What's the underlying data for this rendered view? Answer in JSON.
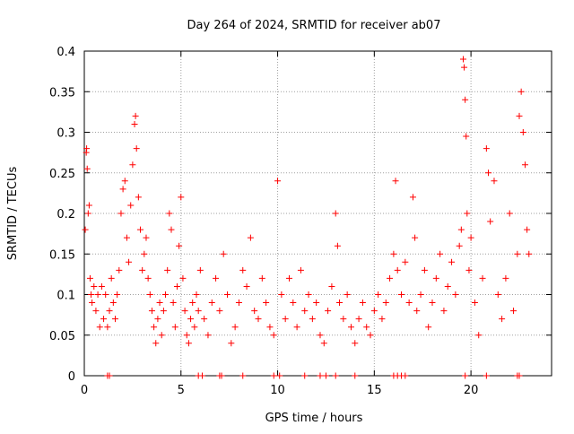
{
  "chart_data": {
    "type": "scatter",
    "title": "Day 264 of 2024, SRMTID for receiver ab07",
    "xlabel": "GPS time / hours",
    "ylabel": "SRMTID / TECUs",
    "xlim": [
      0,
      24.17
    ],
    "ylim": [
      0,
      0.4
    ],
    "grid": true,
    "legend": "none",
    "marker": "+",
    "color": "#ff0000",
    "x_ticks": [
      0,
      5,
      10,
      15,
      20
    ],
    "x_tick_labels": [
      "0",
      "5",
      "10",
      "15",
      "20"
    ],
    "y_ticks": [
      0,
      0.05,
      0.1,
      0.15,
      0.2,
      0.25,
      0.3,
      0.35,
      0.4
    ],
    "y_tick_labels": [
      "0",
      "0.05",
      "0.1",
      "0.15",
      "0.2",
      "0.25",
      "0.3",
      "0.35",
      "0.4"
    ],
    "series": [
      {
        "name": "SRMTID",
        "points": [
          [
            0.05,
            0.18
          ],
          [
            0.1,
            0.275
          ],
          [
            0.12,
            0.28
          ],
          [
            0.15,
            0.255
          ],
          [
            0.2,
            0.2
          ],
          [
            0.25,
            0.21
          ],
          [
            0.3,
            0.12
          ],
          [
            0.35,
            0.1
          ],
          [
            0.4,
            0.09
          ],
          [
            0.5,
            0.11
          ],
          [
            0.6,
            0.08
          ],
          [
            0.7,
            0.1
          ],
          [
            0.8,
            0.06
          ],
          [
            0.9,
            0.11
          ],
          [
            1.0,
            0.07
          ],
          [
            1.1,
            0.1
          ],
          [
            1.2,
            0.06
          ],
          [
            1.3,
            0.08
          ],
          [
            1.4,
            0.12
          ],
          [
            1.5,
            0.09
          ],
          [
            1.6,
            0.07
          ],
          [
            1.7,
            0.1
          ],
          [
            1.8,
            0.13
          ],
          [
            1.9,
            0.2
          ],
          [
            2.0,
            0.23
          ],
          [
            2.1,
            0.24
          ],
          [
            2.2,
            0.17
          ],
          [
            2.3,
            0.14
          ],
          [
            2.4,
            0.21
          ],
          [
            2.5,
            0.26
          ],
          [
            2.6,
            0.31
          ],
          [
            2.65,
            0.32
          ],
          [
            2.7,
            0.28
          ],
          [
            2.8,
            0.22
          ],
          [
            2.9,
            0.18
          ],
          [
            3.0,
            0.13
          ],
          [
            3.1,
            0.15
          ],
          [
            3.2,
            0.17
          ],
          [
            3.3,
            0.12
          ],
          [
            3.4,
            0.1
          ],
          [
            3.5,
            0.08
          ],
          [
            3.6,
            0.06
          ],
          [
            3.7,
            0.04
          ],
          [
            3.8,
            0.07
          ],
          [
            3.9,
            0.09
          ],
          [
            4.0,
            0.05
          ],
          [
            4.1,
            0.08
          ],
          [
            4.2,
            0.1
          ],
          [
            4.3,
            0.13
          ],
          [
            4.4,
            0.2
          ],
          [
            4.5,
            0.18
          ],
          [
            4.6,
            0.09
          ],
          [
            4.7,
            0.06
          ],
          [
            4.8,
            0.11
          ],
          [
            4.9,
            0.16
          ],
          [
            5.0,
            0.22
          ],
          [
            5.1,
            0.12
          ],
          [
            5.2,
            0.08
          ],
          [
            5.3,
            0.05
          ],
          [
            5.4,
            0.04
          ],
          [
            5.5,
            0.07
          ],
          [
            5.6,
            0.09
          ],
          [
            5.7,
            0.06
          ],
          [
            5.8,
            0.1
          ],
          [
            5.9,
            0.08
          ],
          [
            6.0,
            0.13
          ],
          [
            6.2,
            0.07
          ],
          [
            6.4,
            0.05
          ],
          [
            6.6,
            0.09
          ],
          [
            6.8,
            0.12
          ],
          [
            7.0,
            0.08
          ],
          [
            7.2,
            0.15
          ],
          [
            7.4,
            0.1
          ],
          [
            7.6,
            0.04
          ],
          [
            7.8,
            0.06
          ],
          [
            8.0,
            0.09
          ],
          [
            8.2,
            0.13
          ],
          [
            8.4,
            0.11
          ],
          [
            8.6,
            0.17
          ],
          [
            8.8,
            0.08
          ],
          [
            9.0,
            0.07
          ],
          [
            9.2,
            0.12
          ],
          [
            9.4,
            0.09
          ],
          [
            9.6,
            0.06
          ],
          [
            9.8,
            0.05
          ],
          [
            10.0,
            0.24
          ],
          [
            10.2,
            0.1
          ],
          [
            10.4,
            0.07
          ],
          [
            10.6,
            0.12
          ],
          [
            10.8,
            0.09
          ],
          [
            11.0,
            0.06
          ],
          [
            11.2,
            0.13
          ],
          [
            11.4,
            0.08
          ],
          [
            11.6,
            0.1
          ],
          [
            11.8,
            0.07
          ],
          [
            12.0,
            0.09
          ],
          [
            12.2,
            0.05
          ],
          [
            12.4,
            0.04
          ],
          [
            12.6,
            0.08
          ],
          [
            12.8,
            0.11
          ],
          [
            13.0,
            0.2
          ],
          [
            13.1,
            0.16
          ],
          [
            13.2,
            0.09
          ],
          [
            13.4,
            0.07
          ],
          [
            13.6,
            0.1
          ],
          [
            13.8,
            0.06
          ],
          [
            14.0,
            0.04
          ],
          [
            14.2,
            0.07
          ],
          [
            14.4,
            0.09
          ],
          [
            14.6,
            0.06
          ],
          [
            14.8,
            0.05
          ],
          [
            15.0,
            0.08
          ],
          [
            15.2,
            0.1
          ],
          [
            15.4,
            0.07
          ],
          [
            15.6,
            0.09
          ],
          [
            15.8,
            0.12
          ],
          [
            16.0,
            0.15
          ],
          [
            16.1,
            0.24
          ],
          [
            16.2,
            0.13
          ],
          [
            16.4,
            0.1
          ],
          [
            16.6,
            0.14
          ],
          [
            16.8,
            0.09
          ],
          [
            17.0,
            0.22
          ],
          [
            17.1,
            0.17
          ],
          [
            17.2,
            0.08
          ],
          [
            17.4,
            0.1
          ],
          [
            17.6,
            0.13
          ],
          [
            17.8,
            0.06
          ],
          [
            18.0,
            0.09
          ],
          [
            18.2,
            0.12
          ],
          [
            18.4,
            0.15
          ],
          [
            18.6,
            0.08
          ],
          [
            18.8,
            0.11
          ],
          [
            19.0,
            0.14
          ],
          [
            19.2,
            0.1
          ],
          [
            19.4,
            0.16
          ],
          [
            19.5,
            0.18
          ],
          [
            19.6,
            0.39
          ],
          [
            19.65,
            0.38
          ],
          [
            19.7,
            0.34
          ],
          [
            19.75,
            0.295
          ],
          [
            19.8,
            0.2
          ],
          [
            19.9,
            0.13
          ],
          [
            20.0,
            0.17
          ],
          [
            20.2,
            0.09
          ],
          [
            20.4,
            0.05
          ],
          [
            20.6,
            0.12
          ],
          [
            20.8,
            0.28
          ],
          [
            20.9,
            0.25
          ],
          [
            21.0,
            0.19
          ],
          [
            21.2,
            0.24
          ],
          [
            21.4,
            0.1
          ],
          [
            21.6,
            0.07
          ],
          [
            21.8,
            0.12
          ],
          [
            22.0,
            0.2
          ],
          [
            22.2,
            0.08
          ],
          [
            22.4,
            0.15
          ],
          [
            22.5,
            0.32
          ],
          [
            22.6,
            0.35
          ],
          [
            22.7,
            0.3
          ],
          [
            22.8,
            0.26
          ],
          [
            22.9,
            0.18
          ],
          [
            23.0,
            0.15
          ]
        ]
      }
    ],
    "zero_points_x": [
      1.2,
      1.3,
      5.9,
      6.1,
      7.0,
      7.1,
      8.2,
      9.8,
      10.1,
      11.4,
      12.2,
      12.5,
      13.0,
      14.0,
      16.0,
      16.2,
      16.4,
      16.6,
      19.7,
      20.8,
      22.4,
      22.5
    ]
  }
}
